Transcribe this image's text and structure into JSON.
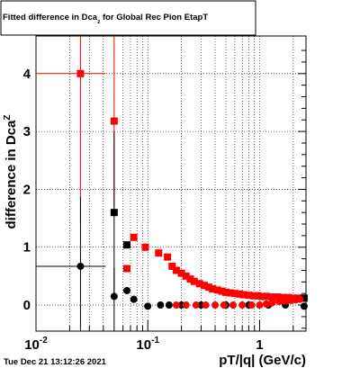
{
  "chart_data": {
    "type": "scatter",
    "title": "Fitted difference in Dca",
    "title_subscript": "z",
    "title_suffix": " for Global Rec Pion EtapT",
    "ylabel": "difference in Dca",
    "ylabel_subscript": "Z",
    "xlabel": "pT/|q| (GeV/c)",
    "x_scale": "log",
    "xlim": [
      0.01,
      2.6
    ],
    "ylim": [
      -0.45,
      4.65
    ],
    "grid": true,
    "legend": "none",
    "x_ticks": [
      {
        "value": 0.01,
        "base": "10",
        "exp": "-2"
      },
      {
        "value": 0.1,
        "base": "10",
        "exp": "-1"
      },
      {
        "value": 1,
        "base": "1",
        "exp": ""
      }
    ],
    "y_ticks": [
      "0",
      "1",
      "2",
      "3",
      "4"
    ],
    "series": [
      {
        "color": "#ff0000",
        "marker": "square",
        "points": [
          {
            "x": 0.025,
            "y": 4.0,
            "xerr": 0.017,
            "yerr": 2.6
          },
          {
            "x": 0.05,
            "y": 3.18,
            "xerr": 0.0,
            "yerr": 1.5
          },
          {
            "x": 0.065,
            "y": 0.63
          },
          {
            "x": 0.075,
            "y": 1.17
          },
          {
            "x": 0.095,
            "y": 1.0
          },
          {
            "x": 0.125,
            "y": 0.9
          },
          {
            "x": 0.15,
            "y": 0.83
          },
          {
            "x": 0.165,
            "y": 0.67
          },
          {
            "x": 0.18,
            "y": 0.6
          },
          {
            "x": 0.2,
            "y": 0.55
          },
          {
            "x": 0.22,
            "y": 0.5
          },
          {
            "x": 0.24,
            "y": 0.45
          },
          {
            "x": 0.26,
            "y": 0.41
          },
          {
            "x": 0.29,
            "y": 0.37
          },
          {
            "x": 0.32,
            "y": 0.34
          },
          {
            "x": 0.35,
            "y": 0.31
          },
          {
            "x": 0.38,
            "y": 0.28
          },
          {
            "x": 0.42,
            "y": 0.26
          },
          {
            "x": 0.46,
            "y": 0.24
          },
          {
            "x": 0.5,
            "y": 0.22
          },
          {
            "x": 0.55,
            "y": 0.21
          },
          {
            "x": 0.6,
            "y": 0.2
          },
          {
            "x": 0.66,
            "y": 0.19
          },
          {
            "x": 0.72,
            "y": 0.18
          },
          {
            "x": 0.8,
            "y": 0.17
          },
          {
            "x": 0.88,
            "y": 0.16
          },
          {
            "x": 0.96,
            "y": 0.16
          },
          {
            "x": 1.05,
            "y": 0.15
          },
          {
            "x": 1.15,
            "y": 0.15
          },
          {
            "x": 1.3,
            "y": 0.14
          },
          {
            "x": 1.45,
            "y": 0.14
          },
          {
            "x": 1.6,
            "y": 0.13
          },
          {
            "x": 1.8,
            "y": 0.13
          },
          {
            "x": 2.0,
            "y": 0.12
          },
          {
            "x": 2.2,
            "y": 0.12
          },
          {
            "x": 2.45,
            "y": 0.12
          }
        ]
      },
      {
        "color": "#000000",
        "marker": "square",
        "points": [
          {
            "x": 0.05,
            "y": 1.6,
            "xerr": 0.0,
            "yerr": 1.4
          },
          {
            "x": 0.065,
            "y": 1.04
          },
          {
            "x": 2.5,
            "y": 0.12
          }
        ]
      },
      {
        "color": "#000000",
        "marker": "circle",
        "points": [
          {
            "x": 0.025,
            "y": 0.67,
            "xerr": 0.017,
            "yerr": 1.2
          },
          {
            "x": 0.05,
            "y": 0.15,
            "xerr": 0.0,
            "yerr": 0.5
          },
          {
            "x": 0.065,
            "y": 0.25
          },
          {
            "x": 0.075,
            "y": 0.1
          },
          {
            "x": 0.1,
            "y": -0.02
          },
          {
            "x": 0.13,
            "y": 0.0
          },
          {
            "x": 0.155,
            "y": 0.0
          },
          {
            "x": 0.2,
            "y": 0.0
          },
          {
            "x": 0.3,
            "y": 0.0
          },
          {
            "x": 0.5,
            "y": 0.0
          },
          {
            "x": 0.8,
            "y": 0.0
          },
          {
            "x": 1.2,
            "y": 0.0
          },
          {
            "x": 1.7,
            "y": 0.0
          },
          {
            "x": 2.5,
            "y": -0.02
          }
        ]
      },
      {
        "color": "#ff0000",
        "marker": "circle",
        "points": [
          {
            "x": 0.18,
            "y": 0.0
          },
          {
            "x": 0.22,
            "y": 0.0
          },
          {
            "x": 0.27,
            "y": 0.0
          },
          {
            "x": 0.33,
            "y": 0.0
          },
          {
            "x": 0.4,
            "y": 0.0
          },
          {
            "x": 0.48,
            "y": 0.0
          },
          {
            "x": 0.58,
            "y": 0.0
          },
          {
            "x": 0.7,
            "y": 0.0
          },
          {
            "x": 0.85,
            "y": 0.0
          },
          {
            "x": 1.0,
            "y": 0.0
          },
          {
            "x": 1.15,
            "y": 0.02
          },
          {
            "x": 1.3,
            "y": 0.04
          },
          {
            "x": 1.5,
            "y": 0.06
          },
          {
            "x": 1.7,
            "y": 0.07
          },
          {
            "x": 1.9,
            "y": 0.08
          },
          {
            "x": 2.1,
            "y": 0.09
          },
          {
            "x": 2.3,
            "y": 0.1
          }
        ]
      }
    ]
  },
  "footer": {
    "timestamp": "Tue Dec 21 13:12:26 2021"
  }
}
